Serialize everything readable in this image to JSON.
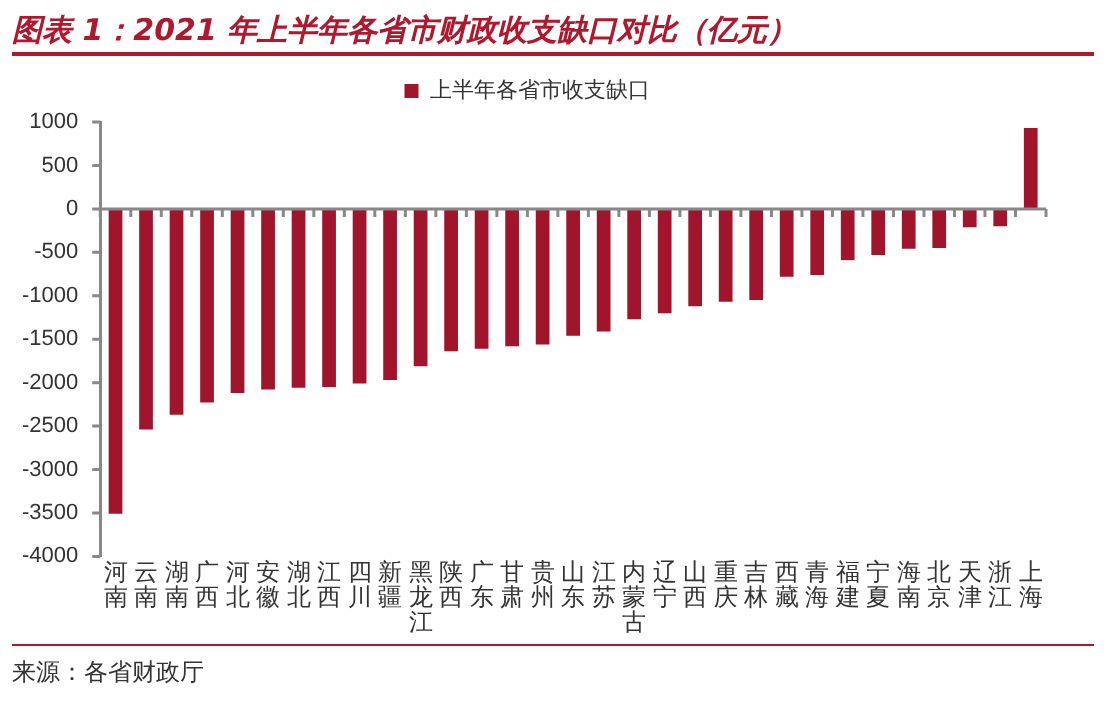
{
  "chart_data": {
    "type": "bar",
    "title": "图表 1：2021 年上半年各省市财政收支缺口对比（亿元）",
    "categories": [
      "河南",
      "云南",
      "湖南",
      "广西",
      "河北",
      "安徽",
      "湖北",
      "江西",
      "四川",
      "新疆",
      "黑龙江",
      "陕西",
      "广东",
      "甘肃",
      "贵州",
      "山东",
      "江苏",
      "内蒙古",
      "辽宁",
      "山西",
      "重庆",
      "吉林",
      "西藏",
      "青海",
      "福建",
      "宁夏",
      "海南",
      "北京",
      "天津",
      "浙江",
      "上海"
    ],
    "series": [
      {
        "name": "上半年各省市收支缺口",
        "color": "#a0142c",
        "values": [
          -3510,
          -2540,
          -2370,
          -2230,
          -2120,
          -2080,
          -2060,
          -2050,
          -2010,
          -1970,
          -1810,
          -1640,
          -1610,
          -1580,
          -1560,
          -1460,
          -1410,
          -1270,
          -1200,
          -1120,
          -1070,
          -1050,
          -780,
          -760,
          -590,
          -530,
          -460,
          -450,
          -210,
          -200,
          930
        ]
      }
    ],
    "ylim": [
      -4000,
      1000
    ],
    "yticks": [
      -4000,
      -3500,
      -3000,
      -2500,
      -2000,
      -1500,
      -1000,
      -500,
      0,
      500,
      1000
    ],
    "grid": false,
    "ref_lines": [
      {
        "axis": "y",
        "value": 0,
        "color": "#888888"
      }
    ],
    "legend": "top",
    "annotations": [
      "来源：各省财政厅"
    ]
  }
}
